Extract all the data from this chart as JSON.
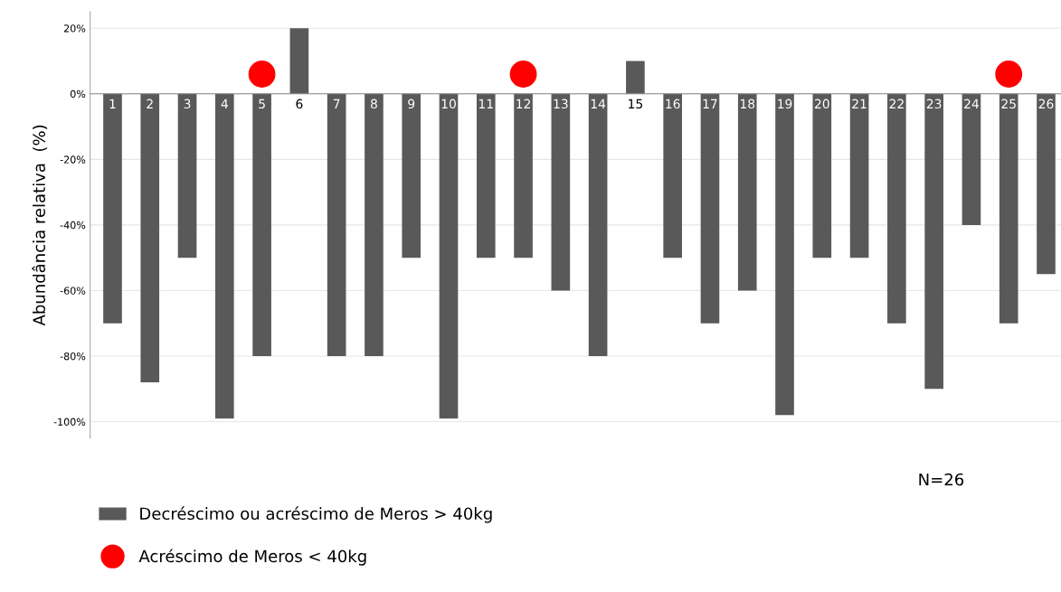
{
  "chart_data": {
    "type": "bar",
    "ylabel": "Abundância relativa  (%)",
    "categories": [
      "1",
      "2",
      "3",
      "4",
      "5",
      "6",
      "7",
      "8",
      "9",
      "10",
      "11",
      "12",
      "13",
      "14",
      "15",
      "16",
      "17",
      "18",
      "19",
      "20",
      "21",
      "22",
      "23",
      "24",
      "25",
      "26"
    ],
    "series": [
      {
        "name": "Decréscimo ou acréscimo de Meros > 40kg",
        "color": "#595959",
        "values": [
          -70,
          -88,
          -50,
          -99,
          -80,
          20,
          -80,
          -80,
          -50,
          -99,
          -50,
          -50,
          -60,
          -80,
          10,
          -50,
          -70,
          -60,
          -98,
          -50,
          -50,
          -70,
          -90,
          -40,
          -70,
          -55
        ]
      },
      {
        "name": "Acréscimo de Meros < 40kg",
        "type": "scatter",
        "color": "#ff0000",
        "marker": "circle",
        "x": [
          "5",
          "12",
          "25"
        ],
        "values": [
          6,
          6,
          6
        ]
      }
    ],
    "ylim": [
      -105,
      25
    ],
    "yticks": [
      {
        "value": 20,
        "label": "20%"
      },
      {
        "value": 0,
        "label": "0%"
      },
      {
        "value": -20,
        "label": "-20%"
      },
      {
        "value": -40,
        "label": "-40%"
      },
      {
        "value": -60,
        "label": "-60%"
      },
      {
        "value": -80,
        "label": "-80%"
      },
      {
        "value": -100,
        "label": "-100%"
      }
    ],
    "grid": "y",
    "legend": "bottom left",
    "annotations": [
      "N=26"
    ]
  }
}
